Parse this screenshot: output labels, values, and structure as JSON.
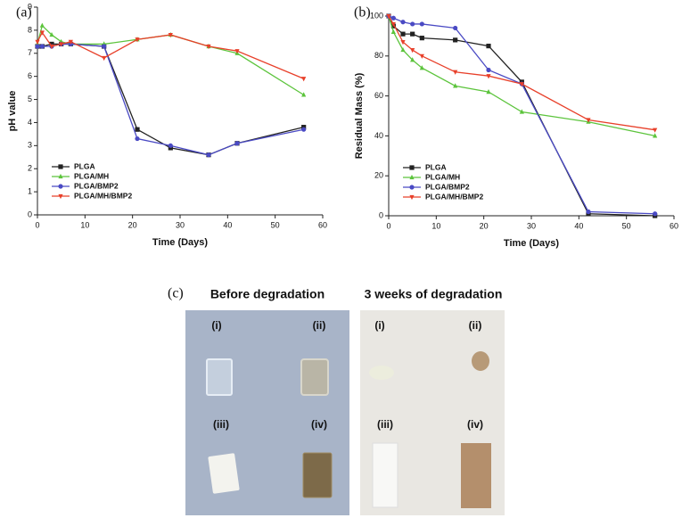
{
  "chart_data": [
    {
      "type": "line",
      "label": "(a)",
      "x_label": "Time (Days)",
      "y_label": "pH value",
      "x": [
        0,
        1,
        3,
        5,
        7,
        14,
        21,
        28,
        36,
        42,
        56
      ],
      "xlim": [
        0,
        60
      ],
      "xticks": [
        0,
        10,
        20,
        30,
        40,
        50,
        60
      ],
      "ylim": [
        0,
        9
      ],
      "yticks": [
        0,
        1,
        2,
        3,
        4,
        5,
        6,
        7,
        8,
        9
      ],
      "legend": "lower left",
      "series": [
        {
          "name": "PLGA",
          "color": "#222222",
          "marker": "square",
          "values": [
            7.3,
            7.3,
            7.4,
            7.4,
            7.4,
            7.3,
            3.7,
            2.9,
            2.6,
            3.1,
            3.8
          ]
        },
        {
          "name": "PLGA/MH",
          "color": "#5cc43c",
          "marker": "triangle",
          "values": [
            7.4,
            8.2,
            7.8,
            7.5,
            7.4,
            7.4,
            7.6,
            7.8,
            7.3,
            7.0,
            5.2
          ]
        },
        {
          "name": "PLGA/BMP2",
          "color": "#4a4ac4",
          "marker": "circle",
          "values": [
            7.3,
            7.3,
            7.3,
            7.4,
            7.4,
            7.3,
            3.3,
            3.0,
            2.6,
            3.1,
            3.7
          ]
        },
        {
          "name": "PLGA/MH/BMP2",
          "color": "#e8402a",
          "marker": "triangle-down",
          "values": [
            7.5,
            7.9,
            7.3,
            7.4,
            7.5,
            6.8,
            7.6,
            7.8,
            7.3,
            7.1,
            5.9
          ]
        }
      ]
    },
    {
      "type": "line",
      "label": "(b)",
      "x_label": "Time (Days)",
      "y_label": "Residual Mass (%)",
      "x": [
        0,
        1,
        3,
        5,
        7,
        14,
        21,
        28,
        42,
        56
      ],
      "xlim": [
        0,
        60
      ],
      "xticks": [
        0,
        10,
        20,
        30,
        40,
        50,
        60
      ],
      "ylim": [
        0,
        100
      ],
      "yticks": [
        0,
        20,
        40,
        60,
        80,
        100
      ],
      "legend": "lower left",
      "series": [
        {
          "name": "PLGA",
          "color": "#222222",
          "marker": "square",
          "values": [
            100,
            95,
            91,
            91,
            89,
            88,
            85,
            67,
            1,
            0
          ]
        },
        {
          "name": "PLGA/MH",
          "color": "#5cc43c",
          "marker": "triangle",
          "values": [
            100,
            92,
            83,
            78,
            74,
            65,
            62,
            52,
            47,
            40
          ]
        },
        {
          "name": "PLGA/BMP2",
          "color": "#4a4ac4",
          "marker": "circle",
          "values": [
            100,
            99,
            97,
            96,
            96,
            94,
            73,
            66,
            2,
            1
          ]
        },
        {
          "name": "PLGA/MH/BMP2",
          "color": "#e8402a",
          "marker": "triangle-down",
          "values": [
            100,
            96,
            87,
            83,
            80,
            72,
            70,
            66,
            48,
            43
          ]
        }
      ]
    }
  ],
  "photos": {
    "label": "(c)",
    "before": {
      "title": "Before degradation",
      "samples": [
        "(i)",
        "(ii)",
        "(iii)",
        "(iv)"
      ]
    },
    "after": {
      "title": "3 weeks of degradation",
      "samples": [
        "(i)",
        "(ii)",
        "(iii)",
        "(iv)"
      ]
    }
  }
}
